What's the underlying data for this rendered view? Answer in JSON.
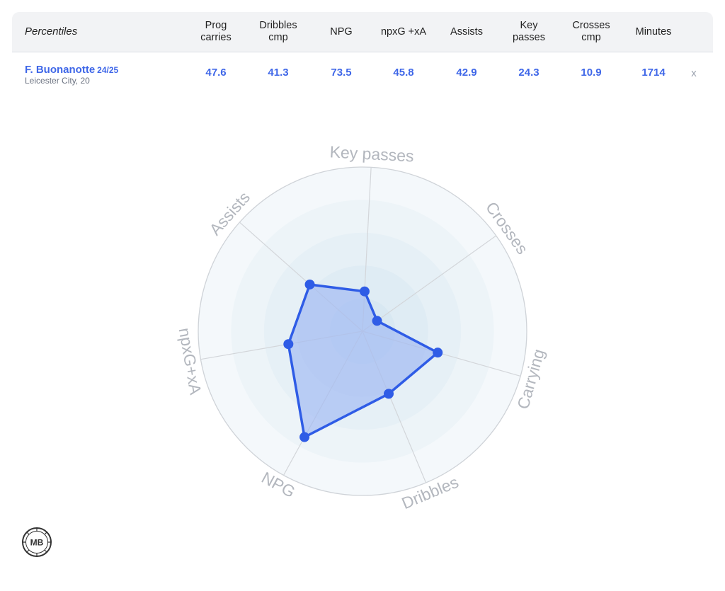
{
  "table": {
    "title": "Percentiles",
    "columns": [
      "Prog\ncarries",
      "Dribbles\ncmp",
      "NPG",
      "npxG +xA",
      "Assists",
      "Key\npasses",
      "Crosses\ncmp",
      "Minutes"
    ],
    "player": {
      "name": "F. Buonanotte",
      "season": "24/25",
      "team": "Leicester City, 20",
      "values": [
        "47.6",
        "41.3",
        "73.5",
        "45.8",
        "42.9",
        "24.3",
        "10.9",
        "1714"
      ]
    },
    "remove_label": "x"
  },
  "chart_data": {
    "type": "radar",
    "axes": [
      "Key passes",
      "Crosses",
      "Carrying",
      "Dribbles",
      "NPG",
      "npxG+xA",
      "Assists"
    ],
    "series": [
      {
        "values": [
          24.3,
          10.9,
          47.6,
          41.3,
          73.5,
          45.8,
          42.9
        ]
      }
    ],
    "range": [
      0,
      100
    ],
    "colors": {
      "line": "#2f5ce6",
      "fill": "#9fb8f3",
      "rings": [
        "#f4f8fb",
        "#edf4f8",
        "#e6f0f6",
        "#dfecf4",
        "#d8e8f2"
      ]
    }
  },
  "logo": {
    "text": "MB"
  }
}
